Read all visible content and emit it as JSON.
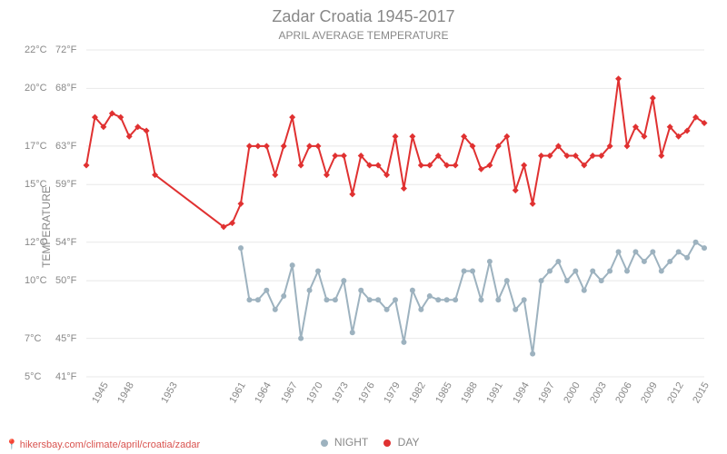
{
  "title": "Zadar Croatia 1945-2017",
  "subtitle": "APRIL AVERAGE TEMPERATURE",
  "ylabel": "TEMPERATURE",
  "footer_url": "hikersbay.com/climate/april/croatia/zadar",
  "legend": {
    "night": "NIGHT",
    "day": "DAY"
  },
  "colors": {
    "day_line": "#e03131",
    "day_marker": "#e03131",
    "night_line": "#9db2bf",
    "night_marker": "#9db2bf",
    "grid": "#e8e8e8",
    "text": "#888888",
    "background": "#ffffff",
    "footer": "#d9534f"
  },
  "chart": {
    "type": "line",
    "x_years": [
      1945,
      1946,
      1947,
      1948,
      1949,
      1950,
      1951,
      1952,
      1953,
      1961,
      1962,
      1963,
      1964,
      1965,
      1966,
      1967,
      1968,
      1969,
      1970,
      1971,
      1972,
      1973,
      1974,
      1975,
      1976,
      1977,
      1978,
      1979,
      1980,
      1981,
      1982,
      1983,
      1984,
      1985,
      1986,
      1987,
      1988,
      1989,
      1990,
      1991,
      1992,
      1993,
      1994,
      1995,
      1996,
      1997,
      1998,
      1999,
      2000,
      2001,
      2002,
      2003,
      2004,
      2005,
      2006,
      2007,
      2008,
      2009,
      2010,
      2011,
      2012,
      2013,
      2014,
      2015,
      2016,
      2017
    ],
    "x_ticks": [
      1945,
      1948,
      1953,
      1961,
      1964,
      1967,
      1970,
      1973,
      1976,
      1979,
      1982,
      1985,
      1988,
      1991,
      1994,
      1997,
      2000,
      2003,
      2006,
      2009,
      2012,
      2015
    ],
    "y_range_c": [
      5,
      22
    ],
    "y_ticks_c": [
      5,
      7,
      10,
      12,
      15,
      17,
      20,
      22
    ],
    "y_ticks_c_labels": [
      "5°C",
      "7°C",
      "10°C",
      "12°C",
      "15°C",
      "17°C",
      "20°C",
      "22°C"
    ],
    "y_ticks_f_labels": [
      "41°F",
      "45°F",
      "50°F",
      "54°F",
      "59°F",
      "63°F",
      "68°F",
      "72°F"
    ],
    "series": {
      "day": [
        16.0,
        18.5,
        18.0,
        18.7,
        18.5,
        17.5,
        18.0,
        17.8,
        15.5,
        12.8,
        13.0,
        14.0,
        17.0,
        17.0,
        17.0,
        15.5,
        17.0,
        18.5,
        16.0,
        17.0,
        17.0,
        15.5,
        16.5,
        16.5,
        14.5,
        16.5,
        16.0,
        16.0,
        15.5,
        17.5,
        14.8,
        17.5,
        16.0,
        16.0,
        16.5,
        16.0,
        16.0,
        17.5,
        17.0,
        15.8,
        16.0,
        17.0,
        17.5,
        14.7,
        16.0,
        14.0,
        16.5,
        16.5,
        17.0,
        16.5,
        16.5,
        16.0,
        16.5,
        16.5,
        17.0,
        20.5,
        17.0,
        18.0,
        17.5,
        19.5,
        16.5,
        18.0,
        17.5,
        17.8,
        18.5,
        18.2
      ],
      "night": [
        null,
        null,
        null,
        null,
        null,
        null,
        null,
        null,
        null,
        null,
        null,
        11.7,
        9.0,
        9.0,
        9.5,
        8.5,
        9.2,
        10.8,
        7.0,
        9.5,
        10.5,
        9.0,
        9.0,
        10.0,
        7.3,
        9.5,
        9.0,
        9.0,
        8.5,
        9.0,
        6.8,
        9.5,
        8.5,
        9.2,
        9.0,
        9.0,
        9.0,
        10.5,
        10.5,
        9.0,
        11.0,
        9.0,
        10.0,
        8.5,
        9.0,
        6.2,
        10.0,
        10.5,
        11.0,
        10.0,
        10.5,
        9.5,
        10.5,
        10.0,
        10.5,
        11.5,
        10.5,
        11.5,
        11.0,
        11.5,
        10.5,
        11.0,
        11.5,
        11.2,
        12.0,
        11.7
      ]
    },
    "line_width": 2,
    "marker_radius": 3,
    "marker_shape_day": "diamond",
    "marker_shape_night": "circle",
    "title_fontsize": 18,
    "subtitle_fontsize": 12,
    "label_fontsize": 12,
    "tick_fontsize": 11
  }
}
